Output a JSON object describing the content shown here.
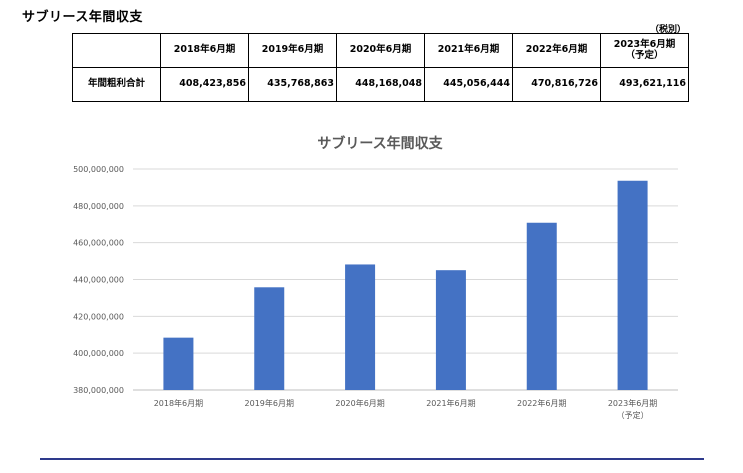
{
  "page": {
    "title": "サブリース年間収支",
    "tax_note": "（税別）"
  },
  "table": {
    "corner": "",
    "columns": [
      "2018年6月期",
      "2019年6月期",
      "2020年6月期",
      "2021年6月期",
      "2022年6月期",
      "2023年6月期\n（予定）"
    ],
    "row_label": "年間粗利合計",
    "values": [
      "408,423,856",
      "435,768,863",
      "448,168,048",
      "445,056,444",
      "470,816,726",
      "493,621,116"
    ]
  },
  "chart_data": {
    "type": "bar",
    "title": "サブリース年間収支",
    "xlabel": "",
    "ylabel": "",
    "categories": [
      "2018年6月期",
      "2019年6月期",
      "2020年6月期",
      "2021年6月期",
      "2022年6月期",
      "2023年6月期\n（予定）"
    ],
    "values": [
      408423856,
      435768863,
      448168048,
      445056444,
      470816726,
      493621116
    ],
    "ylim": [
      380000000,
      500000000
    ],
    "yticks": [
      "380,000,000",
      "400,000,000",
      "420,000,000",
      "440,000,000",
      "460,000,000",
      "480,000,000",
      "500,000,000"
    ],
    "grid": true,
    "legend": "none",
    "bar_color": "#4472c4"
  },
  "colors": {
    "bar": "#4472c4",
    "grid": "#d9d9d9",
    "axis_text": "#595959",
    "footer_rule": "#2e3a8c"
  }
}
